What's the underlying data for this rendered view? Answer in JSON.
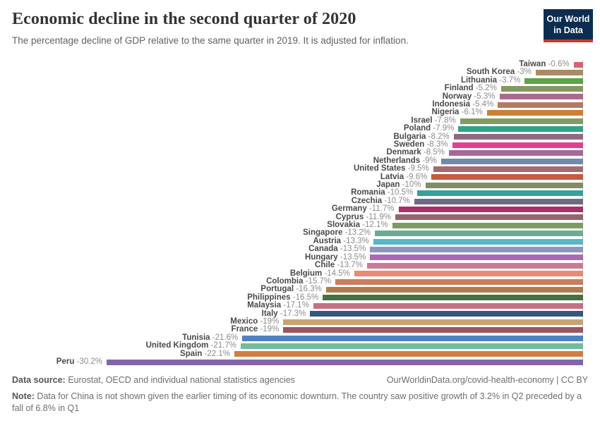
{
  "header": {
    "title": "Economic decline in the second quarter of 2020",
    "subtitle": "The percentage decline of GDP relative to the same quarter in 2019. It is adjusted for inflation.",
    "logo": {
      "line1": "Our World",
      "line2": "in Data",
      "bg_color": "#0d2d50",
      "stripe_color": "#d0352b"
    }
  },
  "chart_data": {
    "type": "bar",
    "orientation": "horizontal",
    "unit": "%",
    "xlim": [
      -31,
      0
    ],
    "grid": false,
    "legend": "none",
    "series": [
      {
        "label": "Taiwan",
        "value": -0.6,
        "display": "-0.6%",
        "color": "#dd6071"
      },
      {
        "label": "South Korea",
        "value": -3,
        "display": "-3%",
        "color": "#a98a62"
      },
      {
        "label": "Lithuania",
        "value": -3.7,
        "display": "-3.7%",
        "color": "#5ba345"
      },
      {
        "label": "Finland",
        "value": -5.2,
        "display": "-5.2%",
        "color": "#87985f"
      },
      {
        "label": "Norway",
        "value": -5.3,
        "display": "-5.3%",
        "color": "#a96b8d"
      },
      {
        "label": "Indonesia",
        "value": -5.4,
        "display": "-5.4%",
        "color": "#b37b67"
      },
      {
        "label": "Nigeria",
        "value": -6.1,
        "display": "-6.1%",
        "color": "#ca8035"
      },
      {
        "label": "Israel",
        "value": -7.8,
        "display": "-7.8%",
        "color": "#809c61"
      },
      {
        "label": "Poland",
        "value": -7.9,
        "display": "-7.9%",
        "color": "#2fa486"
      },
      {
        "label": "Bulgaria",
        "value": -8.2,
        "display": "-8.2%",
        "color": "#8d6a84"
      },
      {
        "label": "Sweden",
        "value": -8.3,
        "display": "-8.3%",
        "color": "#de4190"
      },
      {
        "label": "Denmark",
        "value": -8.5,
        "display": "-8.5%",
        "color": "#a8669c"
      },
      {
        "label": "Netherlands",
        "value": -9,
        "display": "-9%",
        "color": "#7289ae"
      },
      {
        "label": "United States",
        "value": -9.5,
        "display": "-9.5%",
        "color": "#a56b72"
      },
      {
        "label": "Latvia",
        "value": -9.6,
        "display": "-9.6%",
        "color": "#c45b41"
      },
      {
        "label": "Japan",
        "value": -10,
        "display": "-10%",
        "color": "#818d68"
      },
      {
        "label": "Romania",
        "value": -10.5,
        "display": "-10.5%",
        "color": "#399f9c"
      },
      {
        "label": "Czechia",
        "value": -10.7,
        "display": "-10.7%",
        "color": "#6e6a86"
      },
      {
        "label": "Germany",
        "value": -11.7,
        "display": "-11.7%",
        "color": "#a93064"
      },
      {
        "label": "Cyprus",
        "value": -11.9,
        "display": "-11.9%",
        "color": "#95656c"
      },
      {
        "label": "Slovakia",
        "value": -12.1,
        "display": "-12.1%",
        "color": "#7d9c64"
      },
      {
        "label": "Singapore",
        "value": -13.2,
        "display": "-13.2%",
        "color": "#6bab92"
      },
      {
        "label": "Austria",
        "value": -13.3,
        "display": "-13.3%",
        "color": "#58b7c4"
      },
      {
        "label": "Canada",
        "value": -13.5,
        "display": "-13.5%",
        "color": "#8a98c0"
      },
      {
        "label": "Hungary",
        "value": -13.5,
        "display": "-13.5%",
        "color": "#ab69b4"
      },
      {
        "label": "Chile",
        "value": -13.7,
        "display": "-13.7%",
        "color": "#c97b95"
      },
      {
        "label": "Belgium",
        "value": -14.5,
        "display": "-14.5%",
        "color": "#e98a74"
      },
      {
        "label": "Colombia",
        "value": -15.7,
        "display": "-15.7%",
        "color": "#cd7c5e"
      },
      {
        "label": "Portugal",
        "value": -16.3,
        "display": "-16.3%",
        "color": "#b07c4f"
      },
      {
        "label": "Philippines",
        "value": -16.5,
        "display": "-16.5%",
        "color": "#48713f"
      },
      {
        "label": "Malaysia",
        "value": -17.1,
        "display": "-17.1%",
        "color": "#c96f85"
      },
      {
        "label": "Italy",
        "value": -17.3,
        "display": "-17.3%",
        "color": "#36567c"
      },
      {
        "label": "Mexico",
        "value": -19,
        "display": "-19%",
        "color": "#c9a373"
      },
      {
        "label": "France",
        "value": -19,
        "display": "-19%",
        "color": "#9c5560"
      },
      {
        "label": "Tunisia",
        "value": -21.6,
        "display": "-21.6%",
        "color": "#4e82c2"
      },
      {
        "label": "United Kingdom",
        "value": -21.7,
        "display": "-21.7%",
        "color": "#72bb9b"
      },
      {
        "label": "Spain",
        "value": -22.1,
        "display": "-22.1%",
        "color": "#d07e44"
      },
      {
        "label": "Peru",
        "value": -30.2,
        "display": "-30.2%",
        "color": "#8363aa"
      }
    ]
  },
  "footer": {
    "source_label": "Data source:",
    "source_text": " Eurostat, OECD and individual national statistics agencies",
    "link_text": "OurWorldinData.org/covid-health-economy | CC BY",
    "note_label": "Note:",
    "note_text": " Data for China is not shown given the earlier timing of its economic downturn. The country saw positive growth of 3.2% in Q2 preceded by a fall of 6.8% in Q1"
  }
}
